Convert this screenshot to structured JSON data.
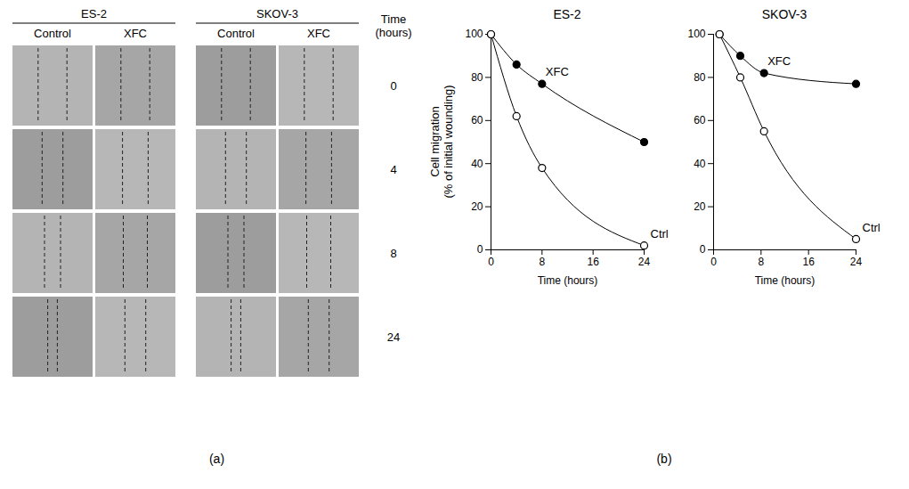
{
  "panel_a": {
    "label": "(a)",
    "groups": [
      {
        "title": "ES-2",
        "columns": [
          "Control",
          "XFC"
        ]
      },
      {
        "title": "SKOV-3",
        "columns": [
          "Control",
          "XFC"
        ]
      }
    ],
    "time_header": "Time\n(hours)",
    "times": [
      0,
      4,
      8,
      24
    ]
  },
  "panel_b": {
    "label": "(b)"
  },
  "chart_data": [
    {
      "type": "line",
      "title": "ES-2",
      "xlabel": "Time (hours)",
      "ylabel": "Cell migration\n(% of initial wounding)",
      "x": [
        0,
        4,
        8,
        24
      ],
      "xlim": [
        0,
        24
      ],
      "xticks": [
        0,
        8,
        16,
        24
      ],
      "ylim": [
        0,
        100
      ],
      "yticks": [
        0,
        20,
        40,
        60,
        80,
        100
      ],
      "grid": false,
      "series": [
        {
          "name": "XFC",
          "color": "#000000",
          "marker": "filled_circle",
          "line_style": "solid",
          "values": [
            100,
            86,
            77,
            50
          ]
        },
        {
          "name": "Ctrl",
          "color": "#000000",
          "marker": "open_circle",
          "line_style": "solid",
          "values": [
            100,
            62,
            38,
            2
          ]
        }
      ]
    },
    {
      "type": "line",
      "title": "SKOV-3",
      "xlabel": "Time (hours)",
      "x": [
        1,
        4.5,
        8.5,
        24
      ],
      "xlim": [
        0,
        24
      ],
      "xticks": [
        0,
        8,
        16,
        24
      ],
      "ylim": [
        0,
        100
      ],
      "yticks": [
        0,
        20,
        40,
        60,
        80,
        100
      ],
      "grid": false,
      "series": [
        {
          "name": "XFC",
          "color": "#000000",
          "marker": "filled_circle",
          "line_style": "solid",
          "values": [
            100,
            90,
            82,
            77
          ]
        },
        {
          "name": "Ctrl",
          "color": "#000000",
          "marker": "open_circle",
          "line_style": "solid",
          "values": [
            100,
            80,
            55,
            5
          ]
        }
      ]
    }
  ]
}
